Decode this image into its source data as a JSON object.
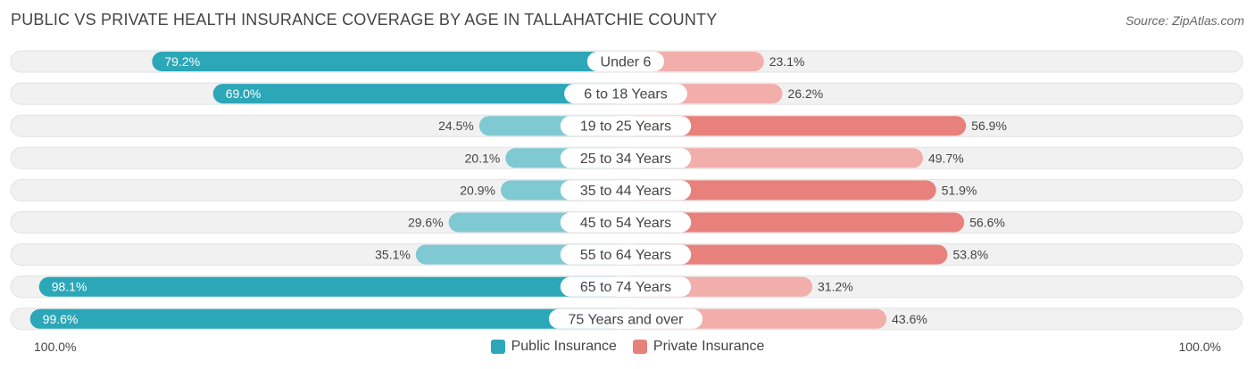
{
  "title": "PUBLIC VS PRIVATE HEALTH INSURANCE COVERAGE BY AGE IN TALLAHATCHIE COUNTY",
  "source": "Source: ZipAtlas.com",
  "axis": {
    "left_label": "100.0%",
    "right_label": "100.0%"
  },
  "legend": {
    "public_label": "Public Insurance",
    "private_label": "Private Insurance"
  },
  "colors": {
    "public_dark": "#2ba7b8",
    "public_light": "#7fc9d3",
    "private_dark": "#e8807b",
    "private_light": "#f2aeaa",
    "track": "#f1f1f1"
  },
  "chart_data": {
    "type": "bar",
    "title": "PUBLIC VS PRIVATE HEALTH INSURANCE COVERAGE BY AGE IN TALLAHATCHIE COUNTY",
    "categories": [
      "Under 6",
      "6 to 18 Years",
      "19 to 25 Years",
      "25 to 34 Years",
      "35 to 44 Years",
      "45 to 54 Years",
      "55 to 64 Years",
      "65 to 74 Years",
      "75 Years and over"
    ],
    "series": [
      {
        "name": "Public Insurance",
        "values": [
          79.2,
          69.0,
          24.5,
          20.1,
          20.9,
          29.6,
          35.1,
          98.1,
          99.6
        ]
      },
      {
        "name": "Private Insurance",
        "values": [
          23.1,
          26.2,
          56.9,
          49.7,
          51.9,
          56.6,
          53.8,
          31.2,
          43.6
        ]
      }
    ],
    "value_labels": {
      "public": [
        "79.2%",
        "69.0%",
        "24.5%",
        "20.1%",
        "20.9%",
        "29.6%",
        "35.1%",
        "98.1%",
        "99.6%"
      ],
      "private": [
        "23.1%",
        "26.2%",
        "56.9%",
        "49.7%",
        "51.9%",
        "56.6%",
        "53.8%",
        "31.2%",
        "43.6%"
      ]
    },
    "xlim": [
      -100,
      100
    ],
    "legend_position": "bottom-center"
  }
}
